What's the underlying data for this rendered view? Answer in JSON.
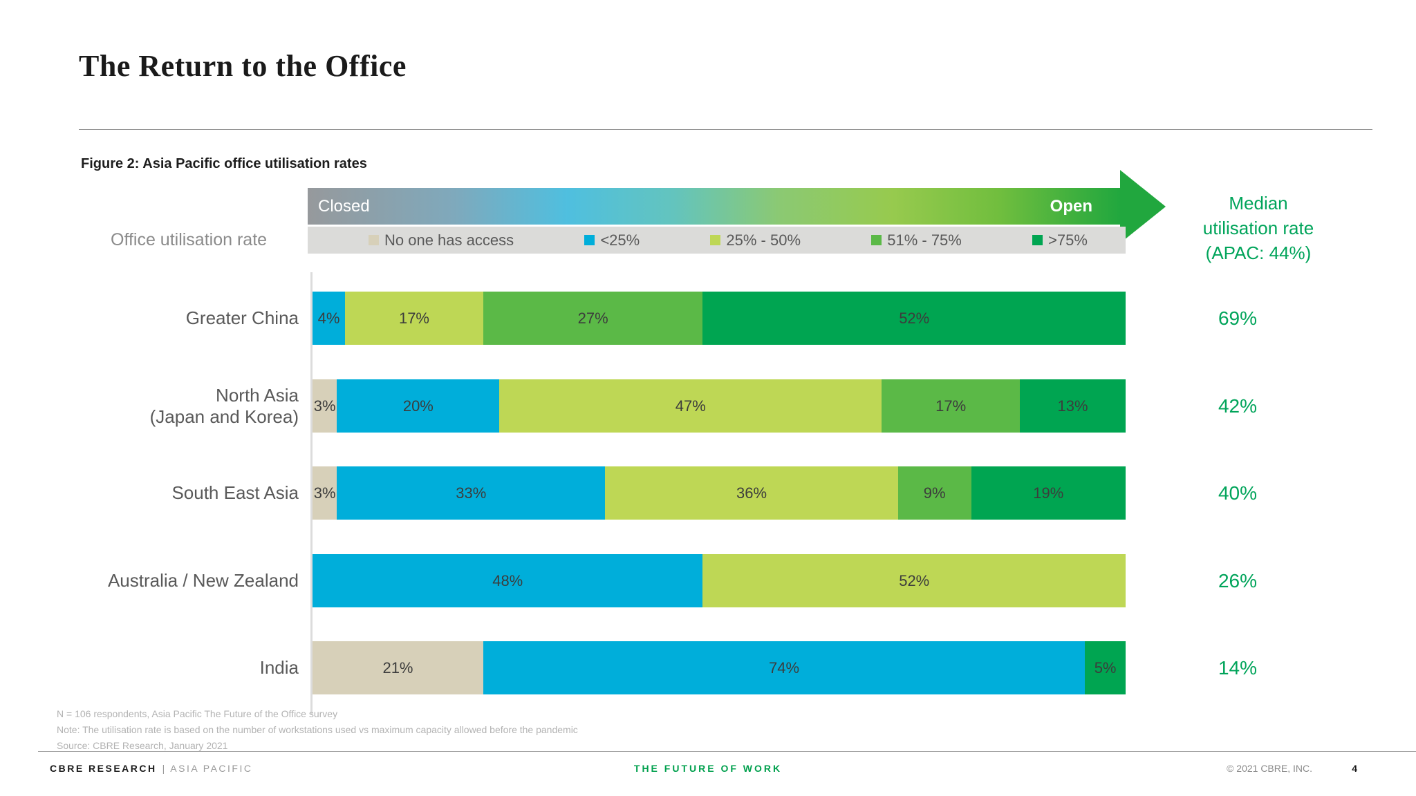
{
  "title": "The Return to the Office",
  "figure_caption": "Figure 2: Asia Pacific office utilisation rates",
  "axis_label": "Office utilisation rate",
  "scale_arrow": {
    "left_label": "Closed",
    "right_label": "Open"
  },
  "legend": {
    "items": [
      {
        "label": "No one has access",
        "color": "#D7D0B9"
      },
      {
        "label": "<25%",
        "color": "#00AEDA"
      },
      {
        "label": "25% - 50%",
        "color": "#BED755"
      },
      {
        "label": "51% - 75%",
        "color": "#5BB947"
      },
      {
        "label": ">75%",
        "color": "#00A551"
      }
    ]
  },
  "median_header": {
    "lines": [
      "Median",
      "utilisation rate",
      "(APAC: 44%)"
    ]
  },
  "chart_data": {
    "type": "bar",
    "orientation": "horizontal-stacked",
    "title": "Asia Pacific office utilisation rates",
    "unit": "%",
    "xlim": [
      0,
      100
    ],
    "categories": [
      "Greater China",
      "North Asia (Japan and Korea)",
      "South East Asia",
      "Australia / New Zealand",
      "India"
    ],
    "category_label_lines": [
      [
        "Greater China"
      ],
      [
        "North Asia",
        "(Japan and Korea)"
      ],
      [
        "South East Asia"
      ],
      [
        "Australia / New Zealand"
      ],
      [
        "India"
      ]
    ],
    "series": [
      {
        "name": "No one has access",
        "color": "#D7D0B9",
        "values": [
          0,
          3,
          3,
          0,
          21
        ]
      },
      {
        "name": "<25%",
        "color": "#00AEDA",
        "values": [
          4,
          20,
          33,
          48,
          74
        ]
      },
      {
        "name": "25% - 50%",
        "color": "#BED755",
        "values": [
          17,
          47,
          36,
          52,
          0
        ]
      },
      {
        "name": "51% - 75%",
        "color": "#5BB947",
        "values": [
          27,
          17,
          9,
          0,
          0
        ]
      },
      {
        "name": ">75%",
        "color": "#00A551",
        "values": [
          52,
          13,
          19,
          0,
          5
        ]
      }
    ],
    "median_label": "Median utilisation rate (APAC: 44%)",
    "median_values": [
      "69%",
      "42%",
      "40%",
      "26%",
      "14%"
    ],
    "legend_position": "top",
    "grid": false
  },
  "footnotes": [
    "N = 106 respondents, Asia Pacific The Future of the Office survey",
    "Note: The utilisation rate is based on the number of workstations used vs maximum capacity allowed before the pandemic",
    "Source: CBRE Research, January 2021"
  ],
  "footer": {
    "left_primary": "CBRE RESEARCH",
    "left_separator": "|",
    "left_secondary": "ASIA PACIFIC",
    "center": "THE FUTURE OF WORK",
    "copyright": "© 2021 CBRE, INC.",
    "page_number": "4"
  }
}
